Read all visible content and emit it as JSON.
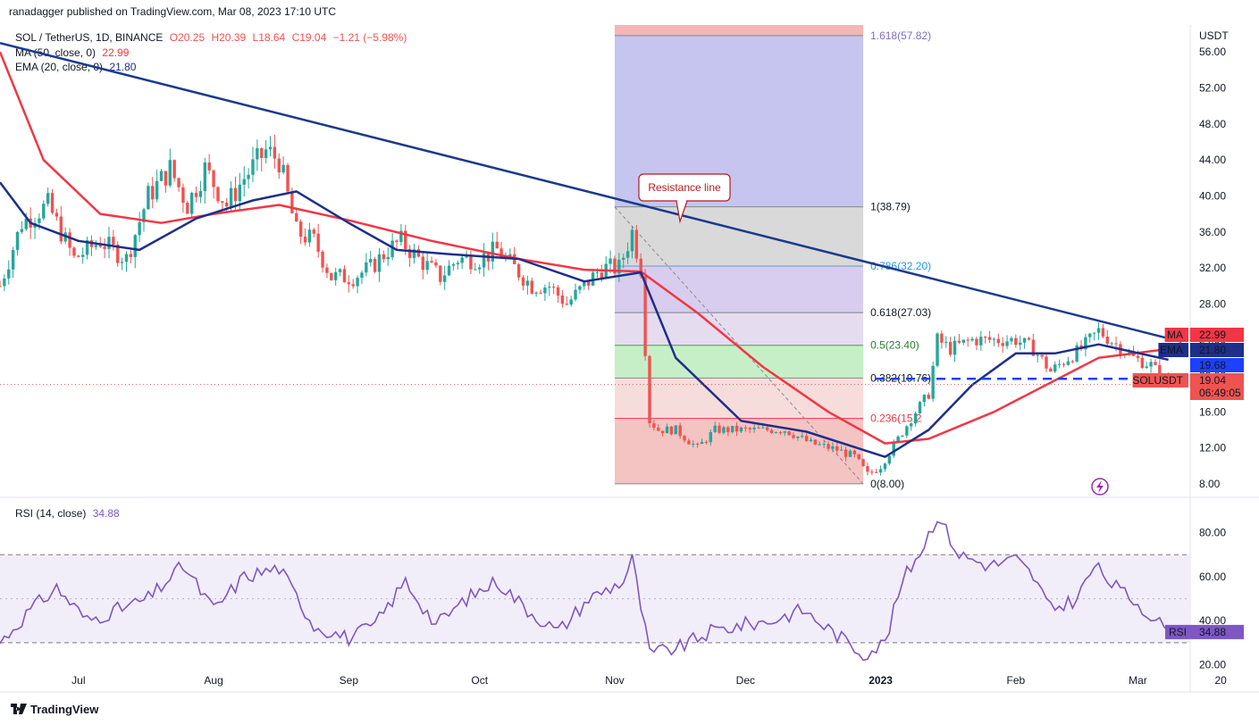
{
  "publisher_note": "ranadagger published on TradingView.com, Mar 08, 2023 17:10 UTC",
  "legend": {
    "symbol": "SOL / TetherUS, 1D, BINANCE",
    "o": "O20.25",
    "h": "H20.39",
    "l": "L18.64",
    "c": "C19.04",
    "change": "−1.21 (−5.98%)",
    "ma_label": "MA (50, close, 0)",
    "ma_value": "22.99",
    "ema_label": "EMA (20, close, 0)",
    "ema_value": "21.80",
    "rsi_label": "RSI (14, close)",
    "rsi_value": "34.88"
  },
  "footer": {
    "brand": "TradingView"
  },
  "colors": {
    "up": "#26a69a",
    "down": "#ef5350",
    "ma": "#f23645",
    "ema": "#1e2f8a",
    "trend": "#1b3a8c",
    "rsi": "#7e57c2",
    "support": "#1e40ff"
  },
  "chart_data": {
    "type": "candlestick",
    "symbol": "SOLUSDT",
    "y_unit": "USDT",
    "price_ylim": [
      7,
      59
    ],
    "price_ticks": [
      "8.00",
      "12.00",
      "16.00",
      "20.00",
      "24.00",
      "28.00",
      "32.00",
      "36.00",
      "40.00",
      "44.00",
      "48.00",
      "52.00",
      "56.00"
    ],
    "rsi_ylim": [
      17,
      94
    ],
    "rsi_ticks": [
      "20.00",
      "40.00",
      "60.00",
      "80.00"
    ],
    "rsi_bands": [
      30,
      50,
      70
    ],
    "x_ticks": [
      "Jul",
      "Aug",
      "Sep",
      "Oct",
      "Nov",
      "Dec",
      "2023",
      "Feb",
      "Mar",
      "20"
    ],
    "x_tick_positions": [
      {
        "label": "Jul",
        "date": "2022-07-01"
      },
      {
        "label": "Aug",
        "date": "2022-08-01"
      },
      {
        "label": "Sep",
        "date": "2022-09-01"
      },
      {
        "label": "Oct",
        "date": "2022-10-01"
      },
      {
        "label": "Nov",
        "date": "2022-11-01"
      },
      {
        "label": "Dec",
        "date": "2022-12-01"
      },
      {
        "label": "2023",
        "date": "2023-01-01"
      },
      {
        "label": "Feb",
        "date": "2023-02-01"
      },
      {
        "label": "Mar",
        "date": "2023-03-01"
      },
      {
        "label": "20",
        "date": "2023-03-20"
      }
    ],
    "price_keypoints": [
      [
        "2022-06-13",
        30
      ],
      [
        "2022-06-18",
        37
      ],
      [
        "2022-06-24",
        39
      ],
      [
        "2022-06-30",
        33
      ],
      [
        "2022-07-06",
        35
      ],
      [
        "2022-07-12",
        33
      ],
      [
        "2022-07-17",
        40
      ],
      [
        "2022-07-22",
        43
      ],
      [
        "2022-07-26",
        39
      ],
      [
        "2022-07-30",
        43
      ],
      [
        "2022-08-04",
        39
      ],
      [
        "2022-08-08",
        42
      ],
      [
        "2022-08-13",
        45
      ],
      [
        "2022-08-16",
        44
      ],
      [
        "2022-08-20",
        36
      ],
      [
        "2022-08-24",
        35
      ],
      [
        "2022-08-28",
        31
      ],
      [
        "2022-09-02",
        31
      ],
      [
        "2022-09-06",
        32
      ],
      [
        "2022-09-10",
        34
      ],
      [
        "2022-09-13",
        35
      ],
      [
        "2022-09-17",
        33
      ],
      [
        "2022-09-22",
        31
      ],
      [
        "2022-09-26",
        33
      ],
      [
        "2022-10-01",
        33
      ],
      [
        "2022-10-05",
        34
      ],
      [
        "2022-10-09",
        32
      ],
      [
        "2022-10-13",
        30
      ],
      [
        "2022-10-17",
        30
      ],
      [
        "2022-10-21",
        28
      ],
      [
        "2022-10-25",
        30
      ],
      [
        "2022-10-29",
        32
      ],
      [
        "2022-11-02",
        32
      ],
      [
        "2022-11-05",
        36
      ],
      [
        "2022-11-07",
        32
      ],
      [
        "2022-11-08",
        23
      ],
      [
        "2022-11-09",
        15
      ],
      [
        "2022-11-11",
        14
      ],
      [
        "2022-11-15",
        14
      ],
      [
        "2022-11-20",
        12
      ],
      [
        "2022-11-24",
        14
      ],
      [
        "2022-11-28",
        14
      ],
      [
        "2022-12-04",
        14
      ],
      [
        "2022-12-10",
        14
      ],
      [
        "2022-12-16",
        12.5
      ],
      [
        "2022-12-22",
        11.8
      ],
      [
        "2022-12-26",
        11
      ],
      [
        "2022-12-29",
        9
      ],
      [
        "2023-01-01",
        10
      ],
      [
        "2023-01-05",
        13
      ],
      [
        "2023-01-09",
        16
      ],
      [
        "2023-01-12",
        18
      ],
      [
        "2023-01-14",
        24
      ],
      [
        "2023-01-17",
        23
      ],
      [
        "2023-01-22",
        24
      ],
      [
        "2023-01-27",
        24
      ],
      [
        "2023-02-01",
        24
      ],
      [
        "2023-02-05",
        23
      ],
      [
        "2023-02-09",
        20.5
      ],
      [
        "2023-02-13",
        22
      ],
      [
        "2023-02-16",
        23
      ],
      [
        "2023-02-20",
        25
      ],
      [
        "2023-02-24",
        23.5
      ],
      [
        "2023-02-28",
        22
      ],
      [
        "2023-03-04",
        21.2
      ],
      [
        "2023-03-08",
        19.04
      ]
    ],
    "ma50_keypoints": [
      [
        "2022-06-13",
        56
      ],
      [
        "2022-06-23",
        44
      ],
      [
        "2022-07-06",
        38
      ],
      [
        "2022-07-20",
        37
      ],
      [
        "2022-08-01",
        38
      ],
      [
        "2022-08-16",
        39
      ],
      [
        "2022-09-01",
        37.3
      ],
      [
        "2022-09-20",
        35
      ],
      [
        "2022-10-10",
        33
      ],
      [
        "2022-10-25",
        31.8
      ],
      [
        "2022-11-07",
        31.6
      ],
      [
        "2022-11-20",
        27
      ],
      [
        "2022-12-05",
        21
      ],
      [
        "2022-12-20",
        16
      ],
      [
        "2023-01-02",
        12.5
      ],
      [
        "2023-01-12",
        13
      ],
      [
        "2023-01-27",
        16
      ],
      [
        "2023-02-10",
        19.5
      ],
      [
        "2023-02-20",
        22
      ],
      [
        "2023-03-08",
        22.99
      ]
    ],
    "ema20_keypoints": [
      [
        "2022-06-13",
        41.5
      ],
      [
        "2022-06-20",
        37
      ],
      [
        "2022-07-01",
        35
      ],
      [
        "2022-07-15",
        34
      ],
      [
        "2022-07-28",
        37.5
      ],
      [
        "2022-08-10",
        39.5
      ],
      [
        "2022-08-20",
        40.5
      ],
      [
        "2022-09-01",
        37
      ],
      [
        "2022-09-12",
        34
      ],
      [
        "2022-09-25",
        33.5
      ],
      [
        "2022-10-10",
        33
      ],
      [
        "2022-10-25",
        30.5
      ],
      [
        "2022-11-07",
        31.5
      ],
      [
        "2022-11-15",
        22
      ],
      [
        "2022-11-30",
        15
      ],
      [
        "2022-12-15",
        13.8
      ],
      [
        "2023-01-02",
        11
      ],
      [
        "2023-01-12",
        14
      ],
      [
        "2023-01-22",
        19
      ],
      [
        "2023-02-01",
        22.5
      ],
      [
        "2023-02-10",
        22.5
      ],
      [
        "2023-02-20",
        23.5
      ],
      [
        "2023-03-08",
        21.8
      ]
    ],
    "rsi_keypoints": [
      [
        "2022-06-13",
        30
      ],
      [
        "2022-06-20",
        45
      ],
      [
        "2022-06-26",
        55
      ],
      [
        "2022-07-03",
        40
      ],
      [
        "2022-07-10",
        45
      ],
      [
        "2022-07-17",
        50
      ],
      [
        "2022-07-25",
        65
      ],
      [
        "2022-08-01",
        45
      ],
      [
        "2022-08-08",
        60
      ],
      [
        "2022-08-16",
        64
      ],
      [
        "2022-08-24",
        38
      ],
      [
        "2022-09-01",
        32
      ],
      [
        "2022-09-07",
        38
      ],
      [
        "2022-09-14",
        58
      ],
      [
        "2022-09-21",
        38
      ],
      [
        "2022-09-28",
        50
      ],
      [
        "2022-10-05",
        58
      ],
      [
        "2022-10-12",
        45
      ],
      [
        "2022-10-19",
        35
      ],
      [
        "2022-10-26",
        50
      ],
      [
        "2022-11-03",
        58
      ],
      [
        "2022-11-05",
        68
      ],
      [
        "2022-11-09",
        25
      ],
      [
        "2022-11-16",
        28
      ],
      [
        "2022-11-23",
        35
      ],
      [
        "2022-11-30",
        38
      ],
      [
        "2022-12-07",
        40
      ],
      [
        "2022-12-14",
        45
      ],
      [
        "2022-12-21",
        35
      ],
      [
        "2022-12-28",
        25
      ],
      [
        "2023-01-02",
        30
      ],
      [
        "2023-01-06",
        58
      ],
      [
        "2023-01-11",
        75
      ],
      [
        "2023-01-14",
        88
      ],
      [
        "2023-01-19",
        70
      ],
      [
        "2023-01-26",
        65
      ],
      [
        "2023-02-01",
        68
      ],
      [
        "2023-02-05",
        60
      ],
      [
        "2023-02-09",
        45
      ],
      [
        "2023-02-15",
        50
      ],
      [
        "2023-02-19",
        65
      ],
      [
        "2023-02-24",
        55
      ],
      [
        "2023-03-01",
        48
      ],
      [
        "2023-03-08",
        34.88
      ]
    ],
    "trendline": {
      "label": "Resistance line",
      "from": [
        "2022-06-13",
        57
      ],
      "to": [
        "2023-03-11",
        23.8
      ]
    },
    "support_level": 19.68,
    "fib": {
      "from_date": "2022-11-01",
      "to_date": "2022-12-28",
      "levels": [
        {
          "label": "0(8.00)",
          "value": 8.0
        },
        {
          "label": "0.236(15.2",
          "value": 15.27
        },
        {
          "label": "0.382(19.76)",
          "value": 19.76
        },
        {
          "label": "0.5(23.40)",
          "value": 23.4
        },
        {
          "label": "0.618(27.03)",
          "value": 27.03
        },
        {
          "label": "0.786(32.20)",
          "value": 32.2
        },
        {
          "label": "1(38.79)",
          "value": 38.79
        },
        {
          "label": "1.618(57.82)",
          "value": 57.82
        }
      ]
    },
    "price_labels": [
      {
        "text": "MA",
        "value_text": "22.99",
        "value": 22.99,
        "color": "#f23645"
      },
      {
        "text": "EMA",
        "value_text": "21.80",
        "value": 21.8,
        "color": "#1e2f8a"
      },
      {
        "text": "",
        "value_text": "19.68",
        "value": 19.68,
        "color": "#1e40ff"
      },
      {
        "text": "SOLUSDT",
        "value_text": "19.04",
        "value": 19.04,
        "sub": "06:49:05",
        "color": "#ef5350"
      }
    ],
    "rsi_label": {
      "text": "RSI",
      "value_text": "34.88",
      "value": 34.88
    }
  }
}
